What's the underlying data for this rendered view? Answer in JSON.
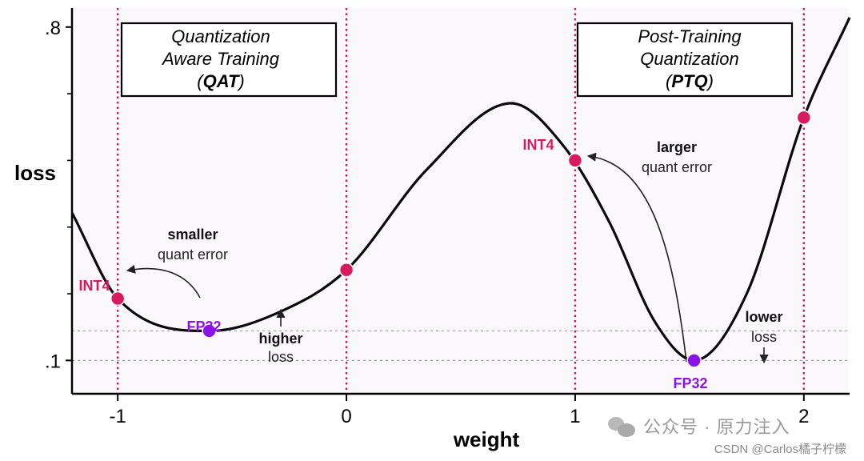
{
  "chart_data": {
    "type": "line",
    "title": "",
    "xlabel": "weight",
    "ylabel": "loss",
    "xlim": [
      -1.2,
      2.2
    ],
    "ylim": [
      0.03,
      0.84
    ],
    "xticks": [
      {
        "value": -1,
        "label": "-1"
      },
      {
        "value": 0,
        "label": "0"
      },
      {
        "value": 1,
        "label": "1"
      },
      {
        "value": 2,
        "label": "2"
      }
    ],
    "yticks": [
      {
        "value": 0.1,
        "label": ".1"
      },
      {
        "value": 0.8,
        "label": ".8"
      }
    ],
    "yminor": [
      0.24,
      0.38,
      0.52,
      0.66
    ],
    "curve": {
      "x": [
        -1.2,
        -1.0,
        -0.6,
        -0.3,
        0.0,
        0.35,
        0.72,
        0.95,
        1.15,
        1.35,
        1.52,
        1.75,
        2.0,
        2.2
      ],
      "y": [
        0.41,
        0.23,
        0.162,
        0.2,
        0.29,
        0.5,
        0.64,
        0.55,
        0.39,
        0.18,
        0.1,
        0.24,
        0.61,
        0.82
      ]
    },
    "vlines": [
      -1,
      0,
      1,
      2
    ],
    "hlines": [
      0.162,
      0.1
    ],
    "points": [
      {
        "x": -1.0,
        "y": 0.23,
        "kind": "int4"
      },
      {
        "x": -0.6,
        "y": 0.162,
        "kind": "fp32"
      },
      {
        "x": 0.0,
        "y": 0.29,
        "kind": "int4"
      },
      {
        "x": 1.0,
        "y": 0.52,
        "kind": "int4"
      },
      {
        "x": 1.52,
        "y": 0.1,
        "kind": "fp32"
      },
      {
        "x": 2.0,
        "y": 0.61,
        "kind": "int4"
      }
    ],
    "boxes": {
      "qat": {
        "line1": "Quantization",
        "line2": "Aware Training",
        "abbr": "QAT"
      },
      "ptq": {
        "line1": "Post-Training",
        "line2": "Quantization",
        "abbr": "PTQ"
      }
    },
    "labels": {
      "int4": "INT4",
      "fp32": "FP32",
      "smaller": "smaller",
      "larger": "larger",
      "quant_error": "quant error",
      "higher": "higher",
      "lower": "lower",
      "loss_word": "loss"
    },
    "colors": {
      "int4": "#d81b60",
      "fp32": "#8a13e8",
      "vline": "#c2185b",
      "curve": "#0a0a0a",
      "background": "#fbf8fc",
      "hline": "#9e9e9e"
    }
  },
  "watermark": {
    "text": "公众号 · 原力注入",
    "csdn": "CSDN @Carlos橘子柠檬"
  }
}
